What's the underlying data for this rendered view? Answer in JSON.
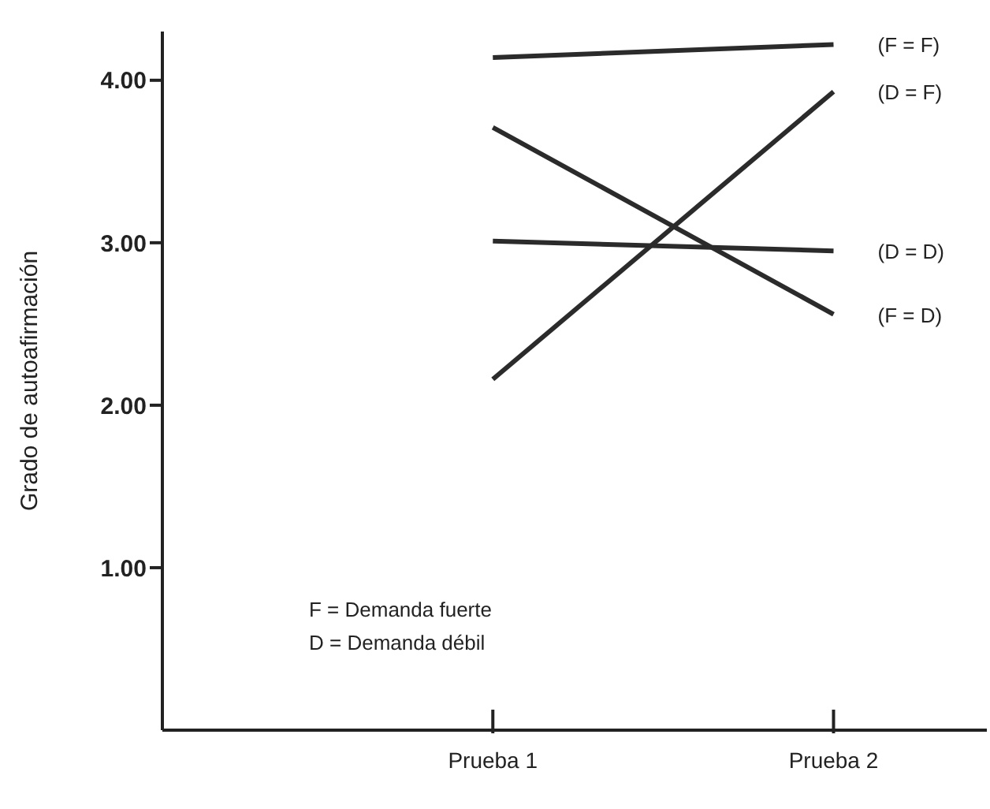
{
  "chart_data": {
    "type": "line",
    "ylabel": "Grado de autoafirmación",
    "categories": [
      "Prueba 1",
      "Prueba 2"
    ],
    "series": [
      {
        "name": "(F = F)",
        "color": "#2b2b2b",
        "values": [
          4.14,
          4.22
        ]
      },
      {
        "name": "(D = F)",
        "color": "#2b2b2b",
        "values": [
          2.16,
          3.93
        ]
      },
      {
        "name": "(D = D)",
        "color": "#2b2b2b",
        "values": [
          3.01,
          2.95
        ]
      },
      {
        "name": "(F = D)",
        "color": "#2b2b2b",
        "values": [
          3.71,
          2.56
        ]
      }
    ],
    "ylim": [
      0,
      4.3
    ],
    "yticks": [
      {
        "value": 1,
        "label": "1.00"
      },
      {
        "value": 2,
        "label": "2.00"
      },
      {
        "value": 3,
        "label": "3.00"
      },
      {
        "value": 4,
        "label": "4.00"
      }
    ],
    "grid": false,
    "legend": false,
    "marker": "none",
    "line_style": "solid",
    "annotations": [
      "F = Demanda fuerte",
      "D = Demanda débil"
    ]
  }
}
